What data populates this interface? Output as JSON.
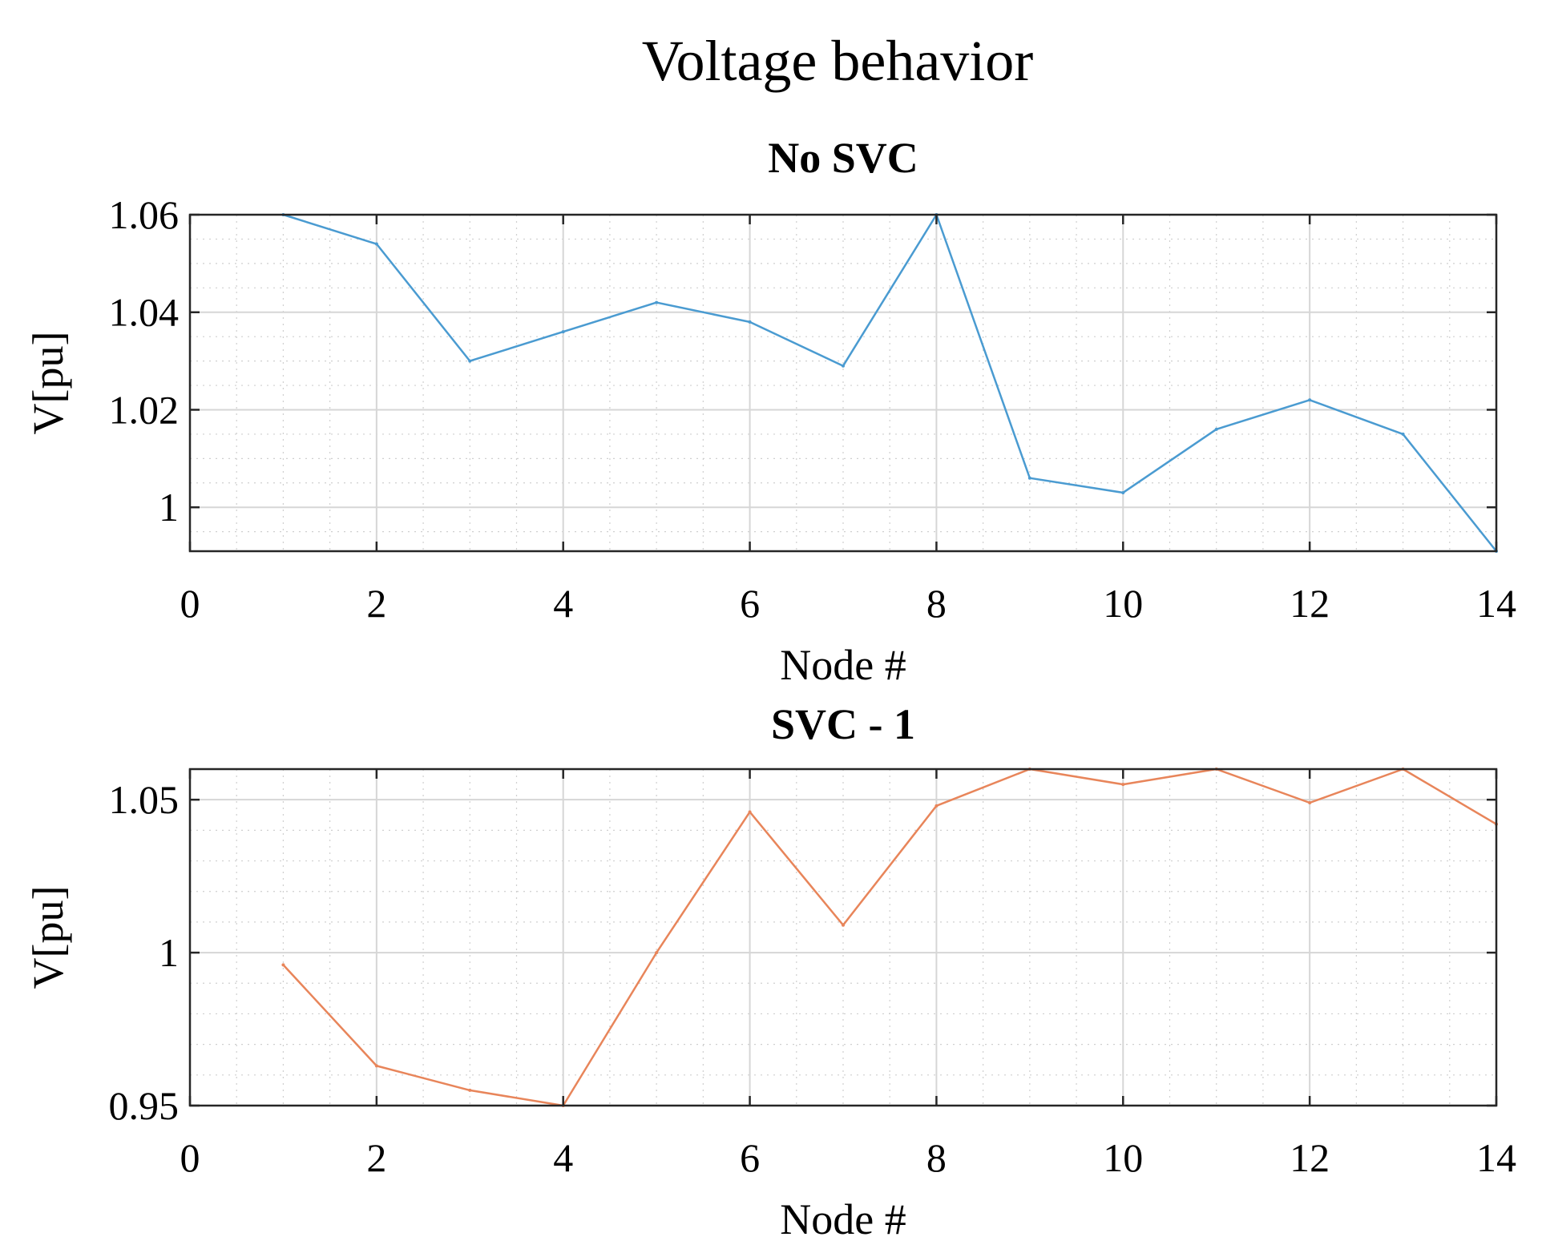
{
  "figure": {
    "title": "Voltage behavior"
  },
  "chart_data": [
    {
      "type": "line",
      "title": "No SVC",
      "xlabel": "Node #",
      "ylabel": "V[pu]",
      "xlim": [
        0,
        14
      ],
      "ylim": [
        0.991,
        1.06
      ],
      "xticks": [
        0,
        2,
        4,
        6,
        8,
        10,
        12,
        14
      ],
      "xtick_labels": [
        "0",
        "2",
        "4",
        "6",
        "8",
        "10",
        "12",
        "14"
      ],
      "yticks": [
        1.0,
        1.02,
        1.04,
        1.06
      ],
      "ytick_labels": [
        "1",
        "1.02",
        "1.04",
        "1.06"
      ],
      "x_minor_step": 0.5,
      "y_minor_step": 0.005,
      "grid": true,
      "series": [
        {
          "name": "No SVC",
          "color": "#4a9bd1",
          "x": [
            1,
            2,
            3,
            4,
            5,
            6,
            7,
            8,
            9,
            10,
            11,
            12,
            13,
            14
          ],
          "values": [
            1.06,
            1.054,
            1.03,
            1.036,
            1.042,
            1.038,
            1.029,
            1.06,
            1.006,
            1.003,
            1.016,
            1.022,
            1.015,
            0.991
          ]
        }
      ]
    },
    {
      "type": "line",
      "title": "SVC - 1",
      "xlabel": "Node #",
      "ylabel": "V[pu]",
      "xlim": [
        0,
        14
      ],
      "ylim": [
        0.95,
        1.06
      ],
      "xticks": [
        0,
        2,
        4,
        6,
        8,
        10,
        12,
        14
      ],
      "xtick_labels": [
        "0",
        "2",
        "4",
        "6",
        "8",
        "10",
        "12",
        "14"
      ],
      "yticks": [
        0.95,
        1.0,
        1.05
      ],
      "ytick_labels": [
        "0.95",
        "1",
        "1.05"
      ],
      "x_minor_step": 0.5,
      "y_minor_step": 0.01,
      "grid": true,
      "series": [
        {
          "name": "SVC - 1",
          "color": "#e8855a",
          "x": [
            1,
            2,
            3,
            4,
            5,
            6,
            7,
            8,
            9,
            10,
            11,
            12,
            13,
            14
          ],
          "values": [
            0.996,
            0.963,
            0.955,
            0.95,
            1.0,
            1.046,
            1.009,
            1.048,
            1.06,
            1.055,
            1.06,
            1.049,
            1.06,
            1.042
          ]
        }
      ]
    }
  ]
}
